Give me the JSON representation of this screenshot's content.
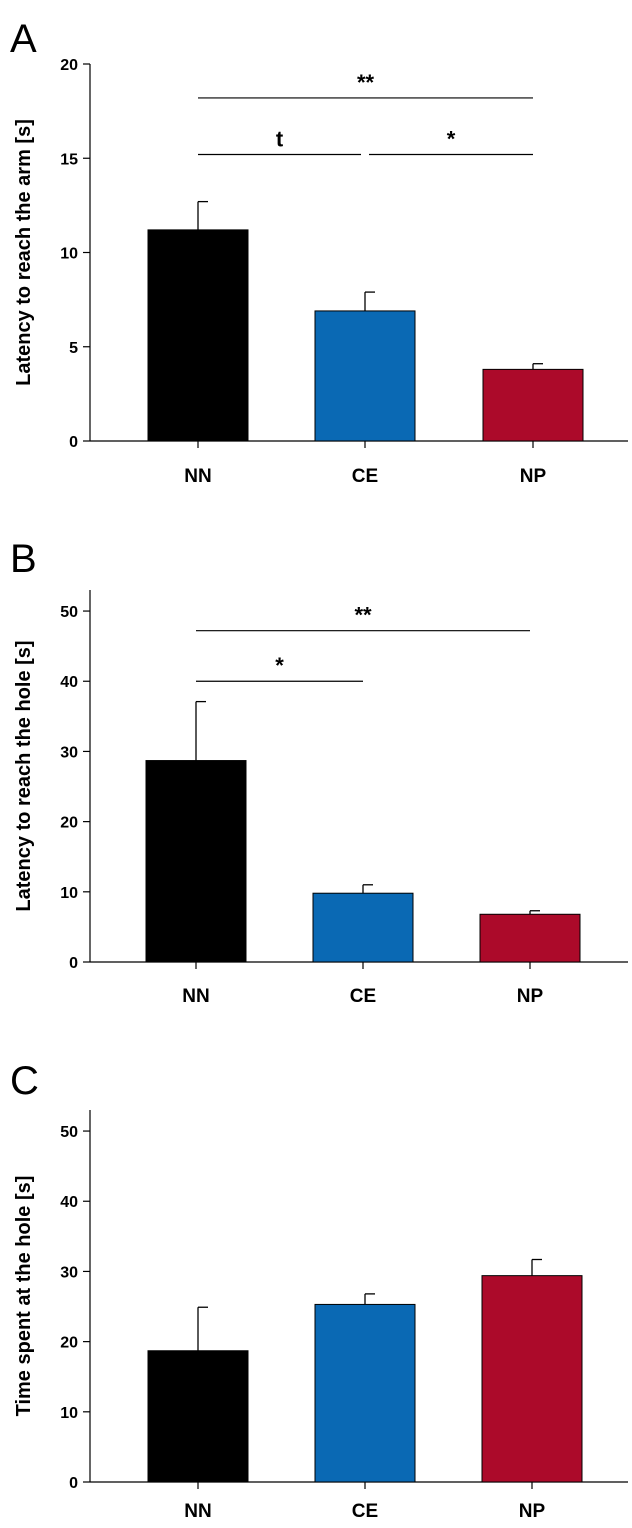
{
  "chart_data": [
    {
      "type": "bar",
      "panel_letter": "A",
      "categories": [
        "NN",
        "CE",
        "NP"
      ],
      "values": [
        11.2,
        6.9,
        3.8
      ],
      "errors": [
        1.5,
        1.0,
        0.3
      ],
      "colors": [
        "#000000",
        "#0a69b4",
        "#ac0a2a"
      ],
      "ylabel": "Latency to reach the arm [s]",
      "ylim": [
        0,
        20
      ],
      "yticks": [
        0,
        5,
        10,
        15,
        20
      ],
      "grid": false,
      "significance": [
        {
          "from": "NN",
          "to": "NP",
          "label": "**",
          "level": 18.2
        },
        {
          "from": "NN",
          "to": "CE",
          "label": "t",
          "level": 15.2
        },
        {
          "from": "CE",
          "to": "NP",
          "label": "*",
          "level": 15.2
        }
      ]
    },
    {
      "type": "bar",
      "panel_letter": "B",
      "categories": [
        "NN",
        "CE",
        "NP"
      ],
      "values": [
        28.7,
        9.8,
        6.8
      ],
      "errors": [
        8.4,
        1.2,
        0.5
      ],
      "colors": [
        "#000000",
        "#0a69b4",
        "#ac0a2a"
      ],
      "ylabel": "Latency to reach the hole [s]",
      "ylim": [
        0,
        53
      ],
      "yticks": [
        0,
        10,
        20,
        30,
        40,
        50
      ],
      "grid": false,
      "significance": [
        {
          "from": "NN",
          "to": "NP",
          "label": "**",
          "level": 47.2
        },
        {
          "from": "NN",
          "to": "CE",
          "label": "*",
          "level": 40.0
        }
      ]
    },
    {
      "type": "bar",
      "panel_letter": "C",
      "categories": [
        "NN",
        "CE",
        "NP"
      ],
      "values": [
        18.7,
        25.3,
        29.4
      ],
      "errors": [
        6.2,
        1.5,
        2.3
      ],
      "colors": [
        "#000000",
        "#0a69b4",
        "#ac0a2a"
      ],
      "ylabel": "Time spent at the hole [s]",
      "ylim": [
        0,
        53
      ],
      "yticks": [
        0,
        10,
        20,
        30,
        40,
        50
      ],
      "grid": false,
      "significance": []
    }
  ]
}
